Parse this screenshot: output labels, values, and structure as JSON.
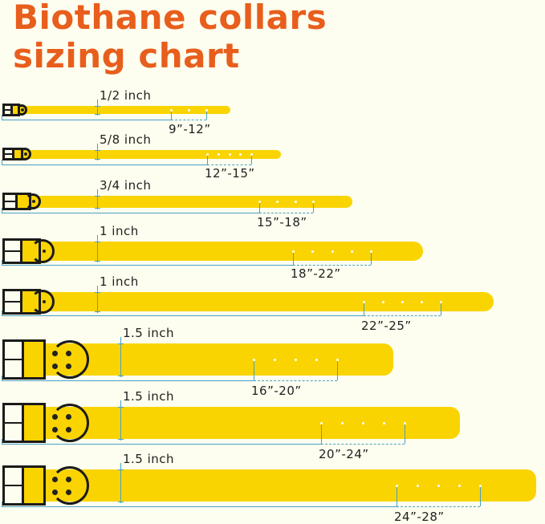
{
  "title": {
    "line1": "Biothane collars",
    "line2": "sizing chart"
  },
  "colors": {
    "title": "#e85e1c",
    "strap": "#fad400",
    "background": "#fdfeef",
    "measure_line": "#4a9fc7",
    "hardware": "#1b1b1b"
  },
  "collars": [
    {
      "width_label": "1/2 inch",
      "size_label": "9”-12”"
    },
    {
      "width_label": "5/8 inch",
      "size_label": "12”-15”"
    },
    {
      "width_label": "3/4 inch",
      "size_label": "15”-18”"
    },
    {
      "width_label": "1 inch",
      "size_label": "18”-22”"
    },
    {
      "width_label": "1 inch",
      "size_label": "22”-25”"
    },
    {
      "width_label": "1.5 inch",
      "size_label": "16”-20”"
    },
    {
      "width_label": "1.5 inch",
      "size_label": "20”-24”"
    },
    {
      "width_label": "1.5 inch",
      "size_label": "24”-28”"
    }
  ]
}
